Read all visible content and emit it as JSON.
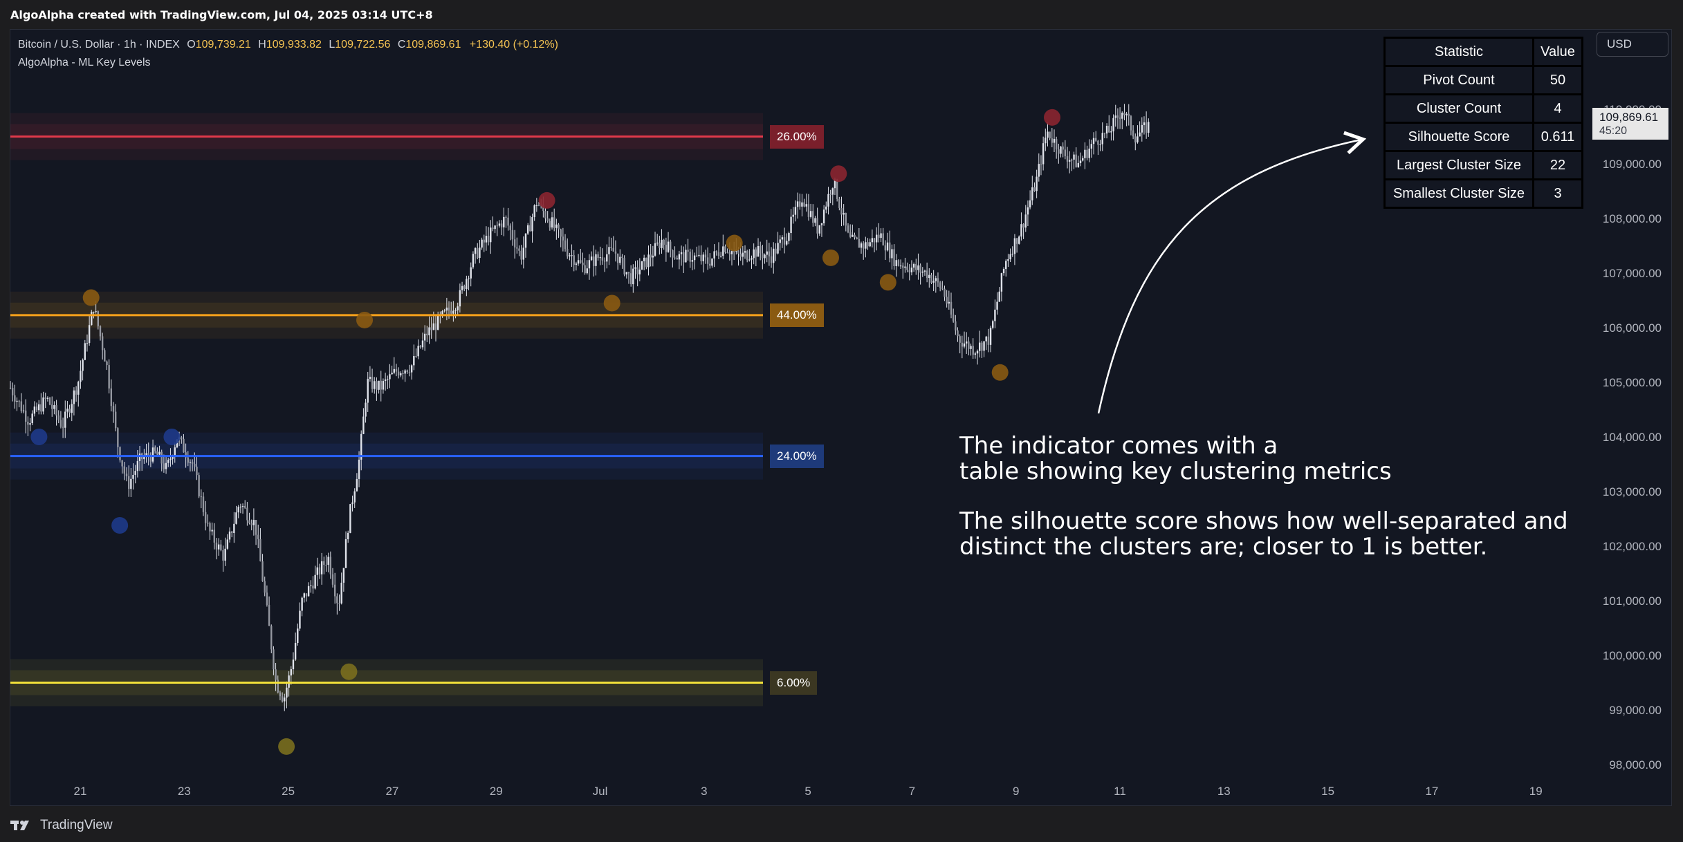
{
  "header": {
    "title": "AlgoAlpha created with TradingView.com, Jul 04, 2025 03:14 UTC+8"
  },
  "legend": {
    "symbol": "Bitcoin / U.S. Dollar · 1h · INDEX",
    "o_key": "O",
    "o_val": "109,739.21",
    "h_key": "H",
    "h_val": "109,933.82",
    "l_key": "L",
    "l_val": "109,722.56",
    "c_key": "C",
    "c_val": "109,869.61",
    "change": "+130.40 (+0.12%)",
    "indicator": "AlgoAlpha - ML Key Levels"
  },
  "currency_button": "USD",
  "price_tag": {
    "price": "109,869.61",
    "countdown": "45:20"
  },
  "stats_table": {
    "header_stat": "Statistic",
    "header_val": "Value",
    "rows": [
      {
        "metric": "Pivot Count",
        "value": "50"
      },
      {
        "metric": "Cluster Count",
        "value": "4"
      },
      {
        "metric": "Silhouette Score",
        "value": "0.611"
      },
      {
        "metric": "Largest Cluster Size",
        "value": "22"
      },
      {
        "metric": "Smallest Cluster Size",
        "value": "3"
      }
    ]
  },
  "annotation": {
    "line1": "The indicator comes with a",
    "line2": "table showing key clustering metrics",
    "line3": "The silhouette score shows how well-separated and",
    "line4": "distinct the clusters are; closer to 1 is better."
  },
  "footer": {
    "brand": "TradingView"
  },
  "colors": {
    "red": "#e0394a",
    "orange": "#f7a21b",
    "blue": "#2962ff",
    "yellow": "#f2e13a",
    "background": "#131722",
    "candle": "#e0e3eb"
  },
  "chart_data": {
    "type": "candlestick",
    "y_axis_labels": [
      "110,000.00",
      "109,000.00",
      "108,000.00",
      "107,000.00",
      "106,000.00",
      "105,000.00",
      "104,000.00",
      "103,000.00",
      "102,000.00",
      "101,000.00",
      "100,000.00",
      "99,000.00",
      "98,000.00"
    ],
    "x_axis_labels": [
      "21",
      "23",
      "25",
      "27",
      "29",
      "Jul",
      "3",
      "5",
      "7",
      "9",
      "11",
      "13",
      "15",
      "17",
      "19"
    ],
    "ylim": [
      97800,
      110700
    ],
    "key_levels": [
      {
        "price": 109500,
        "label": "26.00%",
        "color": "#e0394a",
        "label_bg": "#7a1f2b"
      },
      {
        "price": 106230,
        "label": "44.00%",
        "color": "#f7a21b",
        "label_bg": "#8a5a12"
      },
      {
        "price": 103650,
        "label": "24.00%",
        "color": "#2962ff",
        "label_bg": "#1e3a7a"
      },
      {
        "price": 99500,
        "label": "6.00%",
        "color": "#f2e13a",
        "label_bg": "#3b3722"
      }
    ],
    "price_path": [
      [
        0,
        104900
      ],
      [
        0.35,
        104300
      ],
      [
        0.7,
        104700
      ],
      [
        1.0,
        104200
      ],
      [
        1.3,
        105000
      ],
      [
        1.6,
        106400
      ],
      [
        1.85,
        105300
      ],
      [
        2.05,
        103900
      ],
      [
        2.25,
        103100
      ],
      [
        2.5,
        103600
      ],
      [
        2.8,
        103700
      ],
      [
        3.0,
        103400
      ],
      [
        3.2,
        104000
      ],
      [
        3.5,
        103500
      ],
      [
        3.8,
        102300
      ],
      [
        4.1,
        101800
      ],
      [
        4.4,
        102800
      ],
      [
        4.7,
        102400
      ],
      [
        4.9,
        101000
      ],
      [
        5.1,
        99500
      ],
      [
        5.25,
        99200
      ],
      [
        5.4,
        99800
      ],
      [
        5.6,
        101000
      ],
      [
        5.9,
        101500
      ],
      [
        6.1,
        101800
      ],
      [
        6.3,
        100900
      ],
      [
        6.5,
        102500
      ],
      [
        6.7,
        103600
      ],
      [
        6.85,
        105000
      ],
      [
        7.1,
        104900
      ],
      [
        7.4,
        105200
      ],
      [
        7.7,
        105300
      ],
      [
        8.0,
        105900
      ],
      [
        8.3,
        106200
      ],
      [
        8.6,
        106500
      ],
      [
        8.9,
        107300
      ],
      [
        9.2,
        107700
      ],
      [
        9.5,
        108000
      ],
      [
        9.8,
        107300
      ],
      [
        10.1,
        108300
      ],
      [
        10.4,
        107900
      ],
      [
        10.7,
        107400
      ],
      [
        11.0,
        107100
      ],
      [
        11.3,
        107300
      ],
      [
        11.6,
        107400
      ],
      [
        11.9,
        106900
      ],
      [
        12.2,
        107200
      ],
      [
        12.5,
        107600
      ],
      [
        12.8,
        107300
      ],
      [
        13.1,
        107300
      ],
      [
        13.4,
        107200
      ],
      [
        13.7,
        107500
      ],
      [
        14.0,
        107300
      ],
      [
        14.3,
        107400
      ],
      [
        14.6,
        107300
      ],
      [
        14.9,
        107700
      ],
      [
        15.2,
        108400
      ],
      [
        15.5,
        107800
      ],
      [
        15.8,
        108700
      ],
      [
        16.1,
        107600
      ],
      [
        16.4,
        107500
      ],
      [
        16.7,
        107700
      ],
      [
        17.0,
        107200
      ],
      [
        17.3,
        107100
      ],
      [
        17.6,
        107000
      ],
      [
        17.9,
        106700
      ],
      [
        18.2,
        105800
      ],
      [
        18.5,
        105600
      ],
      [
        18.8,
        105800
      ],
      [
        19.1,
        107200
      ],
      [
        19.4,
        107800
      ],
      [
        19.7,
        108700
      ],
      [
        19.9,
        109600
      ],
      [
        20.2,
        109200
      ],
      [
        20.5,
        109000
      ],
      [
        20.8,
        109400
      ],
      [
        21.1,
        109600
      ],
      [
        21.35,
        110000
      ],
      [
        21.6,
        109500
      ],
      [
        21.85,
        109700
      ]
    ],
    "pivots": [
      {
        "x": 20.0,
        "price": 109850,
        "color": "#8b2530"
      },
      {
        "x": 15.9,
        "price": 108820,
        "color": "#8b2530"
      },
      {
        "x": 10.3,
        "price": 108330,
        "color": "#8b2530"
      },
      {
        "x": 1.55,
        "price": 106550,
        "color": "#8a5a12"
      },
      {
        "x": 6.8,
        "price": 106140,
        "color": "#8a5a12"
      },
      {
        "x": 11.55,
        "price": 106450,
        "color": "#8a5a12"
      },
      {
        "x": 13.9,
        "price": 107550,
        "color": "#8a5a12"
      },
      {
        "x": 15.75,
        "price": 107280,
        "color": "#8a5a12"
      },
      {
        "x": 16.85,
        "price": 106830,
        "color": "#8a5a12"
      },
      {
        "x": 19.0,
        "price": 105180,
        "color": "#8a5a12"
      },
      {
        "x": 0.55,
        "price": 104000,
        "color": "#1e3a8a"
      },
      {
        "x": 2.1,
        "price": 102380,
        "color": "#1e3a8a"
      },
      {
        "x": 3.1,
        "price": 104000,
        "color": "#1e3a8a"
      },
      {
        "x": 6.5,
        "price": 99700,
        "color": "#7a6e1e"
      },
      {
        "x": 5.3,
        "price": 98330,
        "color": "#7a6e1e"
      }
    ]
  }
}
